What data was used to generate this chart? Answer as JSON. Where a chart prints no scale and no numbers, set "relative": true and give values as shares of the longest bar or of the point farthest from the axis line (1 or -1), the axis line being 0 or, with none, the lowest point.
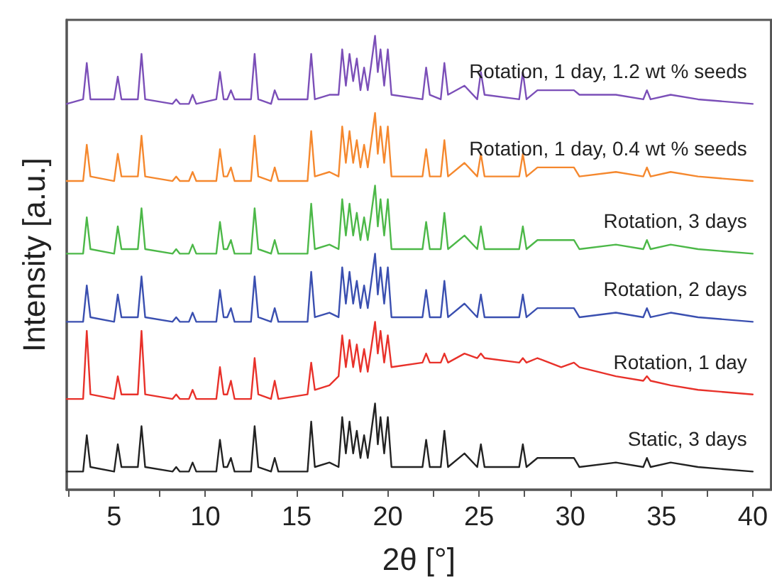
{
  "chart_data": {
    "type": "line",
    "relative": true,
    "xlabel": "2θ [°]",
    "ylabel": "Intensity [a.u.]",
    "xlim": [
      2.4,
      41
    ],
    "xticks": [
      {
        "value": 2.5,
        "label": null
      },
      5,
      {
        "value": 7.5,
        "label": null
      },
      10,
      {
        "value": 12.5,
        "label": null
      },
      15,
      {
        "value": 17.5,
        "label": null
      },
      20,
      {
        "value": 22.5,
        "label": null
      },
      25,
      {
        "value": 27.5,
        "label": null
      },
      30,
      {
        "value": 32.5,
        "label": null
      },
      35,
      {
        "value": 37.5,
        "label": null
      },
      40
    ],
    "x": [
      2.4,
      3.3,
      3.5,
      3.7,
      5.0,
      5.2,
      5.4,
      6.3,
      6.5,
      6.7,
      8.2,
      8.4,
      8.6,
      9.1,
      9.3,
      9.5,
      10.6,
      10.8,
      11.0,
      11.2,
      11.4,
      11.6,
      12.5,
      12.7,
      12.9,
      13.6,
      13.8,
      14.0,
      15.6,
      15.8,
      16.0,
      16.8,
      17.3,
      17.5,
      17.7,
      17.9,
      18.1,
      18.3,
      18.5,
      18.7,
      18.9,
      19.3,
      19.45,
      19.6,
      19.8,
      20.0,
      20.2,
      21.9,
      22.1,
      22.3,
      22.9,
      23.1,
      23.3,
      24.2,
      24.9,
      25.1,
      25.3,
      27.2,
      27.4,
      27.6,
      28.2,
      29.5,
      30.2,
      30.5,
      32.5,
      34.0,
      34.2,
      34.4,
      35.5,
      37.0,
      40.0
    ],
    "grid": false,
    "legend": false,
    "marker": "none",
    "line_style": "solid",
    "series": [
      {
        "name": "Rotation, 1 day, 1.2 wt % seeds",
        "color": "#7b4fb8",
        "values": [
          0.85,
          0.86,
          0.94,
          0.86,
          0.86,
          0.91,
          0.86,
          0.86,
          0.96,
          0.86,
          0.85,
          0.86,
          0.85,
          0.85,
          0.87,
          0.85,
          0.86,
          0.92,
          0.86,
          0.86,
          0.88,
          0.86,
          0.86,
          0.96,
          0.86,
          0.85,
          0.88,
          0.86,
          0.86,
          0.96,
          0.86,
          0.87,
          0.87,
          0.97,
          0.89,
          0.96,
          0.9,
          0.95,
          0.88,
          0.93,
          0.88,
          1,
          0.92,
          0.97,
          0.89,
          0.97,
          0.87,
          0.86,
          0.93,
          0.87,
          0.86,
          0.94,
          0.87,
          0.89,
          0.86,
          0.92,
          0.87,
          0.86,
          0.92,
          0.86,
          0.88,
          0.88,
          0.88,
          0.87,
          0.87,
          0.86,
          0.88,
          0.86,
          0.87,
          0.86,
          0.85
        ]
      },
      {
        "name": "Rotation, 1 day, 0.4 wt % seeds",
        "color": "#f5882e",
        "values": [
          0.68,
          0.68,
          0.76,
          0.69,
          0.68,
          0.74,
          0.69,
          0.69,
          0.78,
          0.69,
          0.68,
          0.69,
          0.68,
          0.68,
          0.7,
          0.68,
          0.68,
          0.75,
          0.69,
          0.69,
          0.71,
          0.68,
          0.68,
          0.78,
          0.69,
          0.68,
          0.71,
          0.68,
          0.68,
          0.79,
          0.69,
          0.7,
          0.69,
          0.8,
          0.72,
          0.79,
          0.72,
          0.77,
          0.71,
          0.76,
          0.71,
          0.83,
          0.74,
          0.8,
          0.72,
          0.8,
          0.69,
          0.69,
          0.75,
          0.69,
          0.69,
          0.77,
          0.69,
          0.72,
          0.69,
          0.74,
          0.69,
          0.69,
          0.74,
          0.69,
          0.71,
          0.71,
          0.71,
          0.69,
          0.7,
          0.69,
          0.71,
          0.69,
          0.7,
          0.69,
          0.68
        ]
      },
      {
        "name": "Rotation, 3 days",
        "color": "#4cb848",
        "values": [
          0.52,
          0.52,
          0.6,
          0.53,
          0.52,
          0.58,
          0.53,
          0.53,
          0.62,
          0.53,
          0.52,
          0.53,
          0.52,
          0.52,
          0.54,
          0.52,
          0.52,
          0.59,
          0.53,
          0.53,
          0.55,
          0.52,
          0.52,
          0.62,
          0.53,
          0.52,
          0.55,
          0.52,
          0.52,
          0.63,
          0.53,
          0.54,
          0.53,
          0.64,
          0.56,
          0.63,
          0.56,
          0.61,
          0.55,
          0.6,
          0.55,
          0.67,
          0.58,
          0.64,
          0.56,
          0.64,
          0.53,
          0.53,
          0.59,
          0.53,
          0.53,
          0.61,
          0.53,
          0.56,
          0.53,
          0.58,
          0.53,
          0.53,
          0.58,
          0.53,
          0.55,
          0.55,
          0.55,
          0.53,
          0.54,
          0.53,
          0.55,
          0.53,
          0.54,
          0.53,
          0.52
        ]
      },
      {
        "name": "Rotation, 2 days",
        "color": "#3a4fb0",
        "values": [
          0.37,
          0.37,
          0.45,
          0.38,
          0.37,
          0.43,
          0.38,
          0.38,
          0.47,
          0.38,
          0.37,
          0.38,
          0.37,
          0.37,
          0.39,
          0.37,
          0.37,
          0.44,
          0.38,
          0.38,
          0.4,
          0.37,
          0.37,
          0.47,
          0.38,
          0.37,
          0.4,
          0.37,
          0.37,
          0.48,
          0.38,
          0.39,
          0.38,
          0.49,
          0.41,
          0.48,
          0.41,
          0.46,
          0.4,
          0.45,
          0.4,
          0.52,
          0.43,
          0.49,
          0.41,
          0.49,
          0.38,
          0.38,
          0.44,
          0.38,
          0.38,
          0.46,
          0.38,
          0.41,
          0.38,
          0.43,
          0.38,
          0.38,
          0.43,
          0.38,
          0.4,
          0.4,
          0.4,
          0.38,
          0.39,
          0.38,
          0.4,
          0.38,
          0.39,
          0.38,
          0.37
        ]
      },
      {
        "name": "Rotation, 1 day",
        "color": "#e8312a",
        "values": [
          0.2,
          0.2,
          0.35,
          0.21,
          0.2,
          0.25,
          0.21,
          0.21,
          0.35,
          0.21,
          0.2,
          0.21,
          0.2,
          0.2,
          0.22,
          0.2,
          0.2,
          0.27,
          0.21,
          0.21,
          0.24,
          0.2,
          0.2,
          0.29,
          0.21,
          0.2,
          0.24,
          0.2,
          0.21,
          0.28,
          0.22,
          0.23,
          0.25,
          0.34,
          0.27,
          0.33,
          0.27,
          0.32,
          0.26,
          0.31,
          0.26,
          0.37,
          0.3,
          0.35,
          0.28,
          0.34,
          0.27,
          0.28,
          0.3,
          0.28,
          0.28,
          0.3,
          0.28,
          0.3,
          0.29,
          0.3,
          0.29,
          0.28,
          0.29,
          0.28,
          0.29,
          0.27,
          0.28,
          0.27,
          0.25,
          0.24,
          0.25,
          0.24,
          0.23,
          0.22,
          0.21
        ]
      },
      {
        "name": "Static, 3 days",
        "color": "#222222",
        "values": [
          0.04,
          0.04,
          0.12,
          0.05,
          0.04,
          0.1,
          0.05,
          0.05,
          0.14,
          0.05,
          0.04,
          0.05,
          0.04,
          0.04,
          0.06,
          0.04,
          0.04,
          0.11,
          0.05,
          0.05,
          0.07,
          0.04,
          0.04,
          0.14,
          0.05,
          0.04,
          0.07,
          0.04,
          0.04,
          0.15,
          0.05,
          0.06,
          0.05,
          0.16,
          0.08,
          0.15,
          0.08,
          0.13,
          0.07,
          0.12,
          0.07,
          0.19,
          0.1,
          0.16,
          0.08,
          0.16,
          0.05,
          0.05,
          0.11,
          0.05,
          0.05,
          0.13,
          0.05,
          0.08,
          0.05,
          0.1,
          0.05,
          0.05,
          0.1,
          0.05,
          0.07,
          0.07,
          0.07,
          0.05,
          0.06,
          0.05,
          0.07,
          0.05,
          0.06,
          0.05,
          0.04
        ]
      }
    ]
  }
}
